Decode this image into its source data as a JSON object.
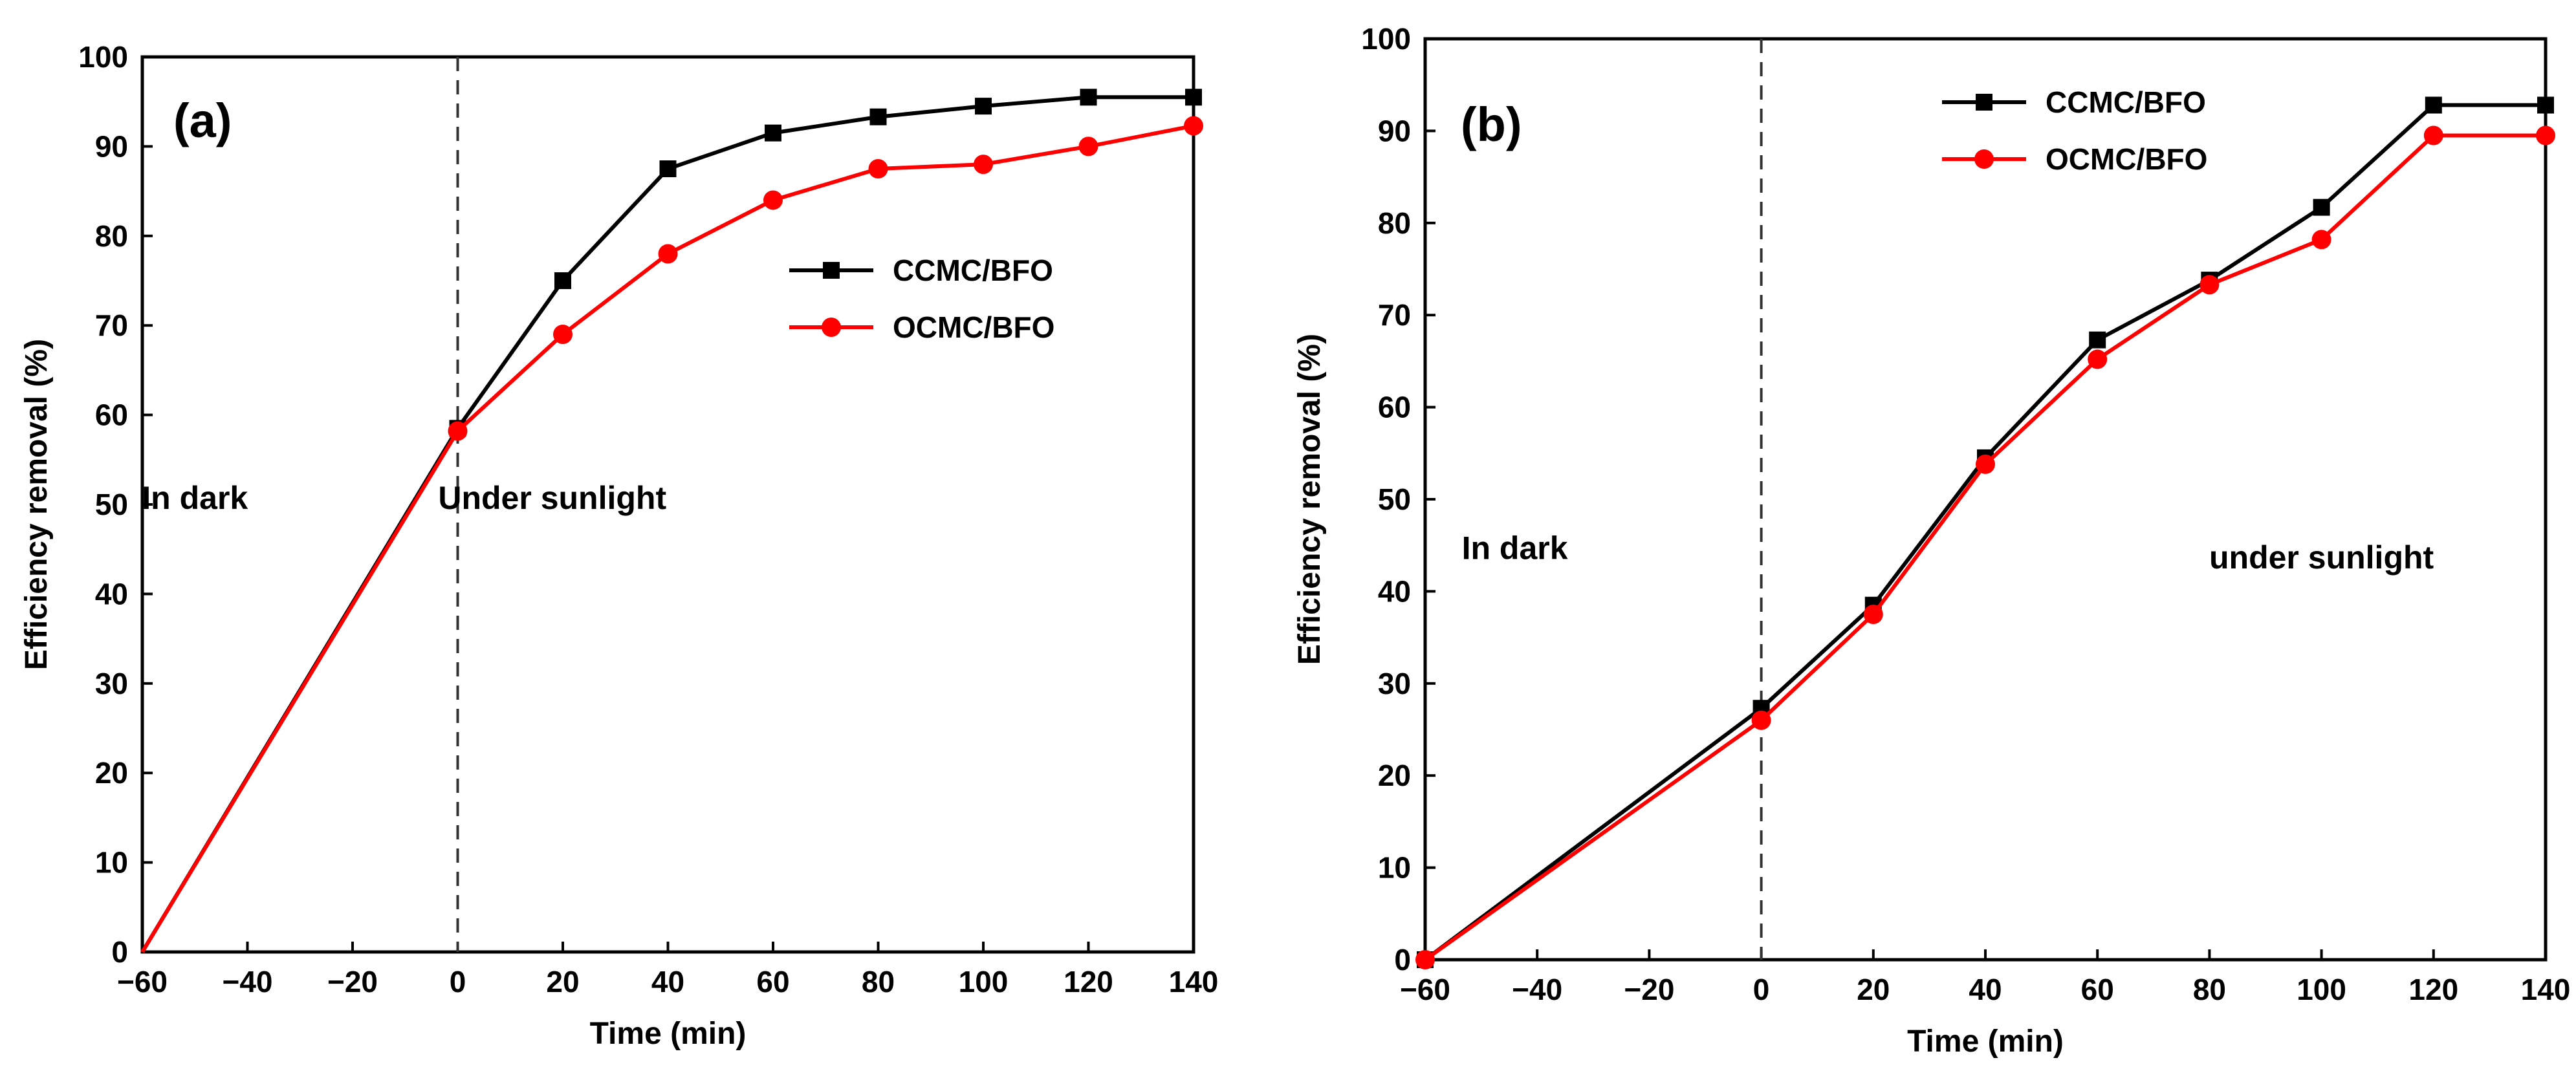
{
  "chart_data": [
    {
      "type": "line",
      "panel_label": "(a)",
      "xlabel": "Time (min)",
      "ylabel": "Efficiency removal (%)",
      "xlim": [
        -60,
        140
      ],
      "ylim": [
        0,
        100
      ],
      "xticks": [
        -60,
        -40,
        -20,
        0,
        20,
        40,
        60,
        80,
        100,
        120,
        140
      ],
      "yticks": [
        0,
        10,
        20,
        30,
        40,
        50,
        60,
        70,
        80,
        90,
        100
      ],
      "divider_x": 0,
      "annotations": [
        {
          "text": "In dark",
          "x": -50,
          "y": 49.5
        },
        {
          "text": "Under sunlight",
          "x": 18,
          "y": 49.5
        }
      ],
      "legend_position": "right, mid-upper",
      "series": [
        {
          "name": "CCMC/BFO",
          "color": "#000000",
          "marker": "square",
          "x": [
            -60,
            0,
            20,
            40,
            60,
            80,
            100,
            120,
            140
          ],
          "values": [
            0,
            58.5,
            75,
            87.5,
            91.5,
            93.3,
            94.5,
            95.5,
            95.5
          ],
          "markers_from_index": 1
        },
        {
          "name": "OCMC/BFO",
          "color": "#ff0000",
          "marker": "circle",
          "x": [
            -60,
            0,
            20,
            40,
            60,
            80,
            100,
            120,
            140
          ],
          "values": [
            0,
            58.2,
            69,
            78,
            84,
            87.5,
            88,
            90,
            92.3
          ],
          "markers_from_index": 1
        }
      ]
    },
    {
      "type": "line",
      "panel_label": "(b)",
      "xlabel": "Time (min)",
      "ylabel": "Efficiency removal (%)",
      "xlim": [
        -60,
        140
      ],
      "ylim": [
        0,
        100
      ],
      "xticks": [
        -60,
        -40,
        -20,
        0,
        20,
        40,
        60,
        80,
        100,
        120,
        140
      ],
      "yticks": [
        0,
        10,
        20,
        30,
        40,
        50,
        60,
        70,
        80,
        90,
        100
      ],
      "divider_x": 0,
      "annotations": [
        {
          "text": "In dark",
          "x": -44,
          "y": 43.5
        },
        {
          "text": "under sunlight",
          "x": 100,
          "y": 42.5
        }
      ],
      "legend_position": "top-center",
      "series": [
        {
          "name": "CCMC/BFO",
          "color": "#000000",
          "marker": "square",
          "x": [
            -60,
            0,
            20,
            40,
            60,
            80,
            100,
            120,
            140
          ],
          "values": [
            0,
            27.3,
            38.5,
            54.5,
            67.3,
            73.8,
            81.7,
            92.8,
            92.8
          ],
          "markers_from_index": 0
        },
        {
          "name": "OCMC/BFO",
          "color": "#ff0000",
          "marker": "circle",
          "x": [
            -60,
            0,
            20,
            40,
            60,
            80,
            100,
            120,
            140
          ],
          "values": [
            0,
            26,
            37.5,
            53.8,
            65.2,
            73.3,
            78.2,
            89.5,
            89.5
          ],
          "markers_from_index": 0
        }
      ]
    }
  ]
}
